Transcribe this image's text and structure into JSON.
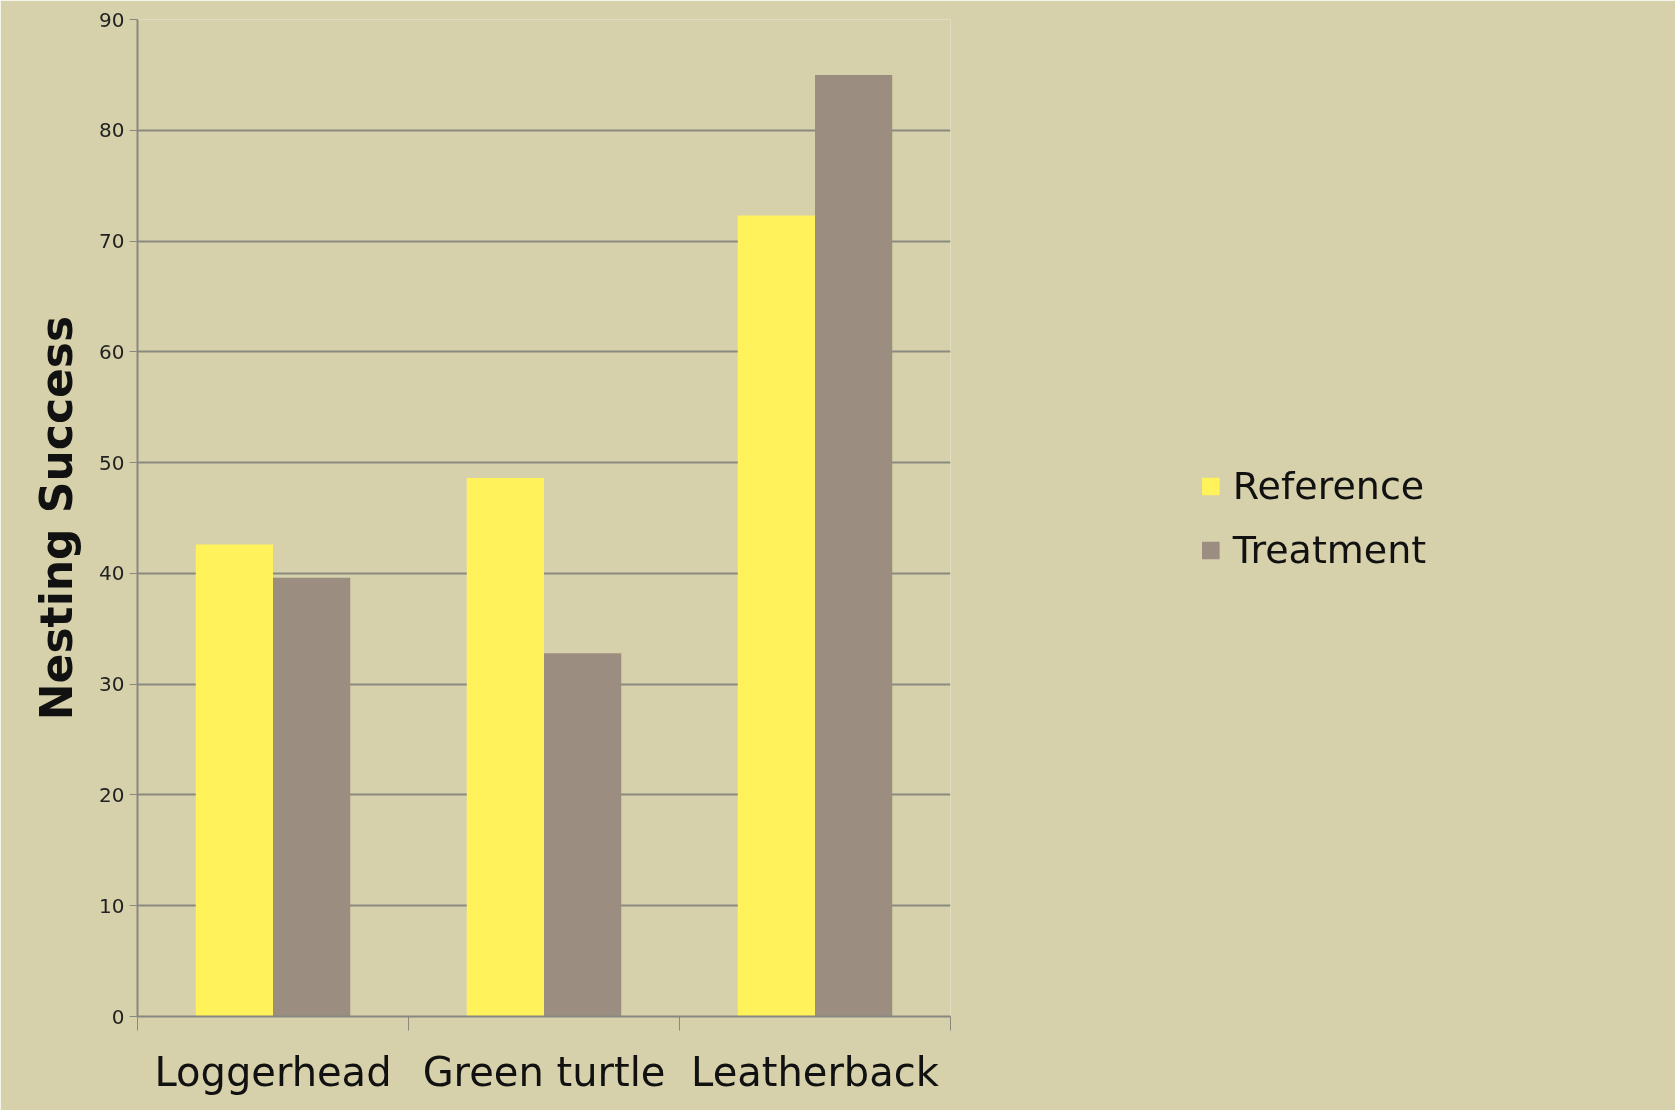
{
  "chart_data": {
    "type": "bar",
    "ylabel": "Nesting Success",
    "categories": [
      "Loggerhead",
      "Green turtle",
      "Leatherback"
    ],
    "series": [
      {
        "name": "Reference",
        "color": "#fff25a",
        "values": [
          42.6,
          48.6,
          72.3
        ]
      },
      {
        "name": "Treatment",
        "color": "#9b8e80",
        "values": [
          39.6,
          32.8,
          85
        ]
      }
    ],
    "ylim": [
      0,
      90
    ],
    "yticks": [
      0,
      10,
      20,
      30,
      40,
      50,
      60,
      70,
      80,
      90
    ],
    "grid": "y",
    "legend": "right"
  }
}
